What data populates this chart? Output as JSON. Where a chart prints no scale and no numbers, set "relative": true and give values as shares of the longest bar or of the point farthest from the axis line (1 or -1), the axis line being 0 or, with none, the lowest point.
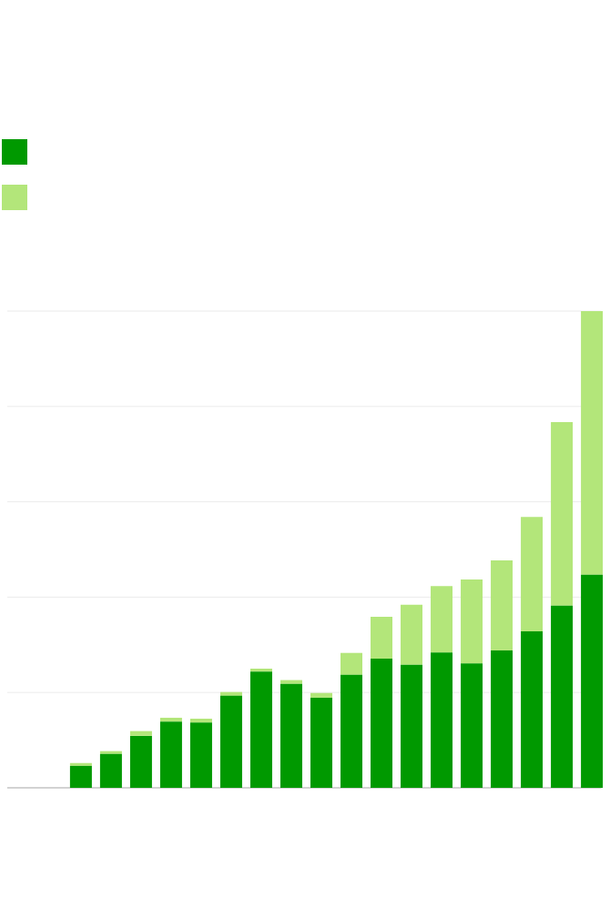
{
  "chart_data": {
    "type": "bar",
    "stacked": true,
    "relative": true,
    "grid": "y",
    "categories": [
      null,
      null,
      null,
      null,
      null,
      null,
      null,
      null,
      null,
      null,
      null,
      null,
      null,
      null,
      null,
      null,
      null,
      null
    ],
    "series": [
      {
        "color": "#009900",
        "values": [
          0.046,
          0.071,
          0.109,
          0.139,
          0.137,
          0.193,
          0.244,
          0.218,
          0.189,
          0.237,
          0.271,
          0.258,
          0.284,
          0.261,
          0.288,
          0.328,
          0.382,
          0.447
        ]
      },
      {
        "color": "#b3e67a",
        "values": [
          0.006,
          0.006,
          0.01,
          0.008,
          0.008,
          0.008,
          0.006,
          0.008,
          0.01,
          0.046,
          0.088,
          0.126,
          0.139,
          0.176,
          0.189,
          0.24,
          0.385,
          0.553
        ]
      }
    ]
  }
}
